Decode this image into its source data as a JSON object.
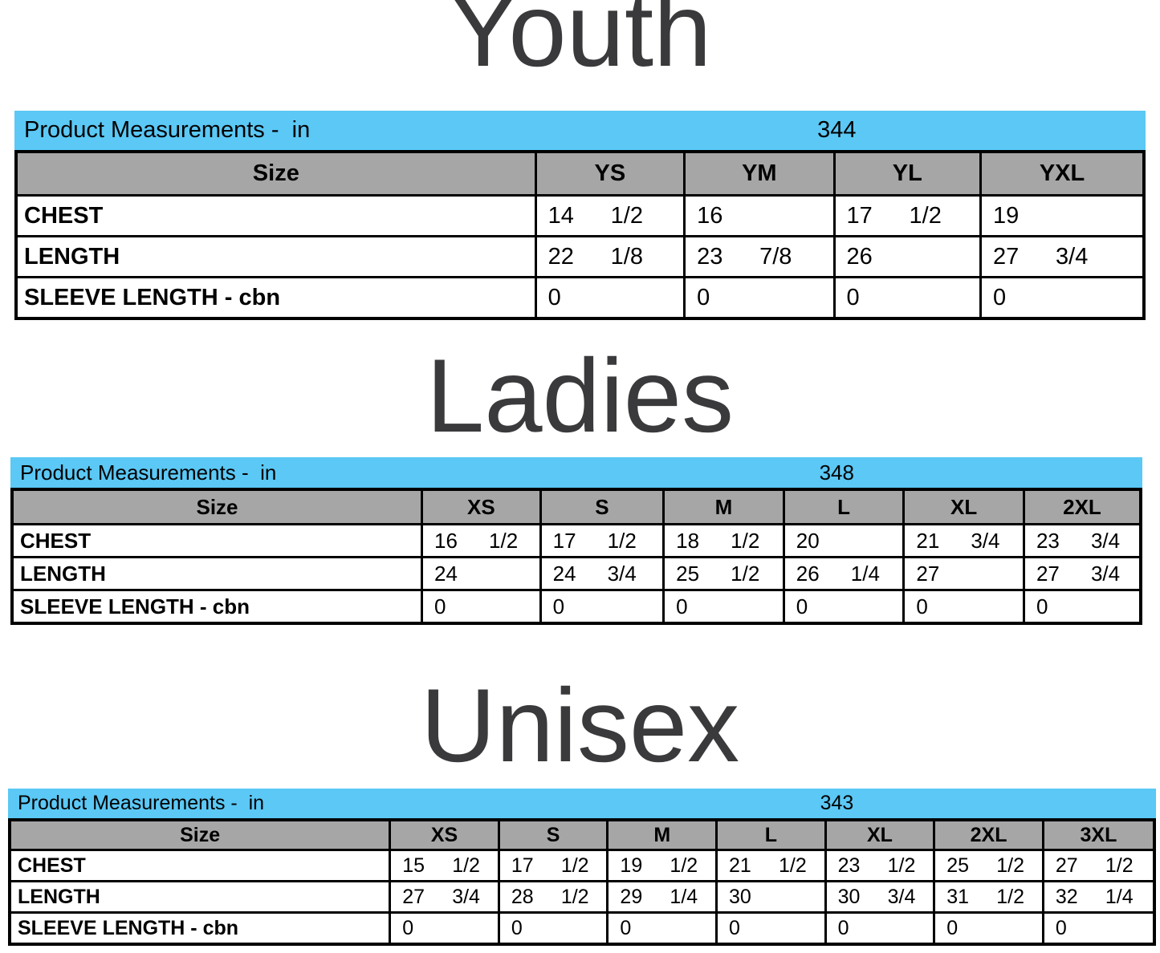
{
  "sections": [
    {
      "title": "Youth",
      "band": {
        "label": "Product Measurements -  in",
        "code": "344"
      },
      "size_label": "Size",
      "sizes": [
        "YS",
        "YM",
        "YL",
        "YXL"
      ],
      "rows": [
        {
          "label": "CHEST",
          "values": [
            "14 1/2",
            "16",
            "17 1/2",
            "19"
          ]
        },
        {
          "label": "LENGTH",
          "values": [
            "22 1/8",
            "23 7/8",
            "26",
            "27 3/4"
          ]
        },
        {
          "label": "SLEEVE LENGTH - cbn",
          "values": [
            "0",
            "0",
            "0",
            "0"
          ]
        }
      ]
    },
    {
      "title": "Ladies",
      "band": {
        "label": "Product Measurements -  in",
        "code": "348"
      },
      "size_label": "Size",
      "sizes": [
        "XS",
        "S",
        "M",
        "L",
        "XL",
        "2XL"
      ],
      "rows": [
        {
          "label": "CHEST",
          "values": [
            "16 1/2",
            "17 1/2",
            "18 1/2",
            "20",
            "21 3/4",
            "23 3/4"
          ]
        },
        {
          "label": "LENGTH",
          "values": [
            "24",
            "24 3/4",
            "25 1/2",
            "26 1/4",
            "27",
            "27 3/4"
          ]
        },
        {
          "label": "SLEEVE LENGTH - cbn",
          "values": [
            "0",
            "0",
            "0",
            "0",
            "0",
            "0"
          ]
        }
      ]
    },
    {
      "title": "Unisex",
      "band": {
        "label": "Product Measurements -  in",
        "code": "343"
      },
      "size_label": "Size",
      "sizes": [
        "XS",
        "S",
        "M",
        "L",
        "XL",
        "2XL",
        "3XL"
      ],
      "rows": [
        {
          "label": "CHEST",
          "values": [
            "15 1/2",
            "17 1/2",
            "19 1/2",
            "21 1/2",
            "23 1/2",
            "25 1/2",
            "27 1/2"
          ]
        },
        {
          "label": "LENGTH",
          "values": [
            "27 3/4",
            "28 1/2",
            "29 1/4",
            "30",
            "30 3/4",
            "31 1/2",
            "32 1/4"
          ]
        },
        {
          "label": "SLEEVE LENGTH - cbn",
          "values": [
            "0",
            "0",
            "0",
            "0",
            "0",
            "0",
            "0"
          ]
        }
      ]
    }
  ],
  "colors": {
    "band_blue": "#5bc8f5",
    "header_gray": "#a6a6a6",
    "title_gray": "#3a3a3c",
    "border_black": "#000000"
  }
}
